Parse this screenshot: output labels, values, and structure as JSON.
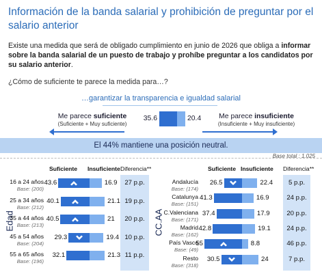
{
  "title": "Información de la banda salarial y prohibición de preguntar por el salario anterior",
  "intro_plain": "Existe una medida que será de obligado cumplimiento en junio de 2026 que obliga a ",
  "intro_bold": "informar sobre la banda salarial de un puesto de trabajo y prohíbe preguntar a los candidatos por su salario anterior",
  "intro_end": ".",
  "question": "¿Cómo de suficiente te parece la medida para…?",
  "sub_question": "…garantizar la transparencia e igualdad salarial",
  "left_label_prefix": "Me parece ",
  "left_label_bold": "suficiente",
  "left_label_sub": "(Suficiente + Muy suficiente)",
  "right_label_prefix": "Me parece ",
  "right_label_bold": "insuficiente",
  "right_label_sub": "(Insuficiente + Muy insuficiente)",
  "total_suficiente": "35.6",
  "total_insuficiente": "20.4",
  "neutral_text": "El 44% mantiene una posición neutral.",
  "base_total": "Base total : 1.025",
  "colors": {
    "dark": "#2f6fd0",
    "light": "#7fb0ee",
    "diff_bg": "#d2e3f7",
    "accent_text": "#2b6cb8"
  },
  "chart_data": [
    {
      "type": "bar",
      "group": "Edad",
      "columns": [
        "Suficiente",
        "Insuficiente",
        "Diferencia**"
      ],
      "rows": [
        {
          "label": "16 a 24 años",
          "base": "Base: (200)",
          "suficiente": 43.6,
          "insuficiente": 16.9,
          "diferencia": "27 p.p.",
          "icon": "chevron-up-icon"
        },
        {
          "label": "25 a 34 años",
          "base": "Base: (212)",
          "suficiente": 40.1,
          "insuficiente": 21.1,
          "diferencia": "19 p.p.",
          "icon": "chevron-up-icon"
        },
        {
          "label": "35 a 44 años",
          "base": "Base: (213)",
          "suficiente": 40.5,
          "insuficiente": 21.0,
          "diferencia": "20 p.p.",
          "icon": "chevron-up-icon"
        },
        {
          "label": "45 a 54 años",
          "base": "Base: (204)",
          "suficiente": 29.3,
          "insuficiente": 19.4,
          "diferencia": "10 p.p.",
          "icon": "chevron-down-icon"
        },
        {
          "label": "55 a 65 años",
          "base": "Base: (196)",
          "suficiente": 32.1,
          "insuficiente": 21.3,
          "diferencia": "11 p.p.",
          "icon": ""
        }
      ]
    },
    {
      "type": "bar",
      "group": "CC.AA",
      "columns": [
        "Suficiente",
        "Insuficiente",
        "Diferencia**"
      ],
      "rows": [
        {
          "label": "Andalucía",
          "base": "Base: (174)",
          "suficiente": 26.5,
          "insuficiente": 22.4,
          "diferencia": "5 p.p.",
          "icon": "chevron-down-icon"
        },
        {
          "label": "Catalunya",
          "base": "Base: (151)",
          "suficiente": 41.3,
          "insuficiente": 16.9,
          "diferencia": "24 p.p.",
          "icon": ""
        },
        {
          "label": "C.Valenciana",
          "base": "Base: (171)",
          "suficiente": 37.4,
          "insuficiente": 17.9,
          "diferencia": "20 p.p.",
          "icon": ""
        },
        {
          "label": "Madrid",
          "base": "Base: (162)",
          "suficiente": 42.8,
          "insuficiente": 19.1,
          "diferencia": "24 p.p.",
          "icon": ""
        },
        {
          "label": "País Vasco",
          "base": "Base: (49)",
          "suficiente": 55,
          "insuficiente": 8.8,
          "diferencia": "46 p.p.",
          "icon": "chevron-up-icon"
        },
        {
          "label": "Resto",
          "base": "Base: (318)",
          "suficiente": 30.5,
          "insuficiente": 24.0,
          "diferencia": "7 p.p.",
          "icon": "chevron-down-icon"
        }
      ]
    }
  ]
}
